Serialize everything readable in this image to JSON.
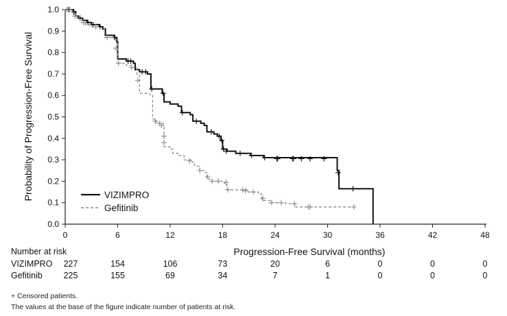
{
  "chart_data": {
    "type": "line",
    "subtype": "kaplan-meier",
    "title": "",
    "xlabel": "Progression-Free Survival (months)",
    "ylabel": "Probability of Progression-Free Survival",
    "xlim": [
      0,
      48
    ],
    "ylim": [
      0,
      1.0
    ],
    "xticks": [
      0,
      6,
      12,
      18,
      24,
      30,
      36,
      42,
      48
    ],
    "yticks": [
      "0.0",
      "0.1",
      "0.2",
      "0.3",
      "0.4",
      "0.5",
      "0.6",
      "0.7",
      "0.8",
      "0.9",
      "1.0"
    ],
    "grid": false,
    "legend_position": "bottom-left",
    "series": [
      {
        "name": "VIZIMPRO",
        "color": "#111111",
        "style": "solid",
        "steps": [
          [
            0,
            1.0
          ],
          [
            0.9,
            0.99
          ],
          [
            1.2,
            0.97
          ],
          [
            1.5,
            0.96
          ],
          [
            2.0,
            0.95
          ],
          [
            2.5,
            0.94
          ],
          [
            3.0,
            0.93
          ],
          [
            3.9,
            0.92
          ],
          [
            4.3,
            0.91
          ],
          [
            4.6,
            0.88
          ],
          [
            5.6,
            0.87
          ],
          [
            5.9,
            0.85
          ],
          [
            6.0,
            0.77
          ],
          [
            7.0,
            0.76
          ],
          [
            7.8,
            0.75
          ],
          [
            8.0,
            0.72
          ],
          [
            8.5,
            0.71
          ],
          [
            9.4,
            0.7
          ],
          [
            9.8,
            0.63
          ],
          [
            11.1,
            0.61
          ],
          [
            11.3,
            0.57
          ],
          [
            12.0,
            0.56
          ],
          [
            12.9,
            0.55
          ],
          [
            13.3,
            0.52
          ],
          [
            14.3,
            0.51
          ],
          [
            14.6,
            0.48
          ],
          [
            15.5,
            0.47
          ],
          [
            15.9,
            0.46
          ],
          [
            16.2,
            0.43
          ],
          [
            17.0,
            0.42
          ],
          [
            17.4,
            0.41
          ],
          [
            17.8,
            0.39
          ],
          [
            18.0,
            0.35
          ],
          [
            18.5,
            0.34
          ],
          [
            19.5,
            0.33
          ],
          [
            21.2,
            0.32
          ],
          [
            22.7,
            0.31
          ],
          [
            31.1,
            0.25
          ],
          [
            31.3,
            0.165
          ],
          [
            35.2,
            0.0
          ]
        ],
        "censored": [
          [
            0.4,
            1.0
          ],
          [
            1.0,
            0.99
          ],
          [
            1.7,
            0.96
          ],
          [
            2.6,
            0.94
          ],
          [
            3.2,
            0.93
          ],
          [
            4.0,
            0.92
          ],
          [
            5.7,
            0.87
          ],
          [
            7.2,
            0.76
          ],
          [
            7.5,
            0.76
          ],
          [
            8.8,
            0.71
          ],
          [
            9.2,
            0.71
          ],
          [
            9.9,
            0.63
          ],
          [
            11.2,
            0.61
          ],
          [
            13.4,
            0.52
          ],
          [
            15.0,
            0.48
          ],
          [
            16.7,
            0.43
          ],
          [
            17.6,
            0.41
          ],
          [
            17.9,
            0.39
          ],
          [
            18.1,
            0.35
          ],
          [
            18.4,
            0.34
          ],
          [
            20.0,
            0.33
          ],
          [
            21.3,
            0.32
          ],
          [
            22.8,
            0.31
          ],
          [
            24.2,
            0.305
          ],
          [
            24.3,
            0.305
          ],
          [
            26.0,
            0.305
          ],
          [
            26.1,
            0.305
          ],
          [
            27.0,
            0.305
          ],
          [
            28.0,
            0.305
          ],
          [
            29.6,
            0.305
          ],
          [
            31.2,
            0.24
          ],
          [
            32.9,
            0.165
          ]
        ],
        "at_risk": [
          227,
          154,
          106,
          73,
          20,
          6,
          0,
          0,
          0
        ]
      },
      {
        "name": "Gefitinib",
        "color": "#8a8a8a",
        "style": "dashed",
        "steps": [
          [
            0,
            1.0
          ],
          [
            0.9,
            0.98
          ],
          [
            1.2,
            0.96
          ],
          [
            1.7,
            0.94
          ],
          [
            2.3,
            0.93
          ],
          [
            2.8,
            0.92
          ],
          [
            4.0,
            0.91
          ],
          [
            4.5,
            0.87
          ],
          [
            5.6,
            0.86
          ],
          [
            6.0,
            0.75
          ],
          [
            7.0,
            0.74
          ],
          [
            7.6,
            0.73
          ],
          [
            8.2,
            0.7
          ],
          [
            8.5,
            0.61
          ],
          [
            9.0,
            0.61
          ],
          [
            9.7,
            0.6
          ],
          [
            10.0,
            0.49
          ],
          [
            10.4,
            0.47
          ],
          [
            11.2,
            0.46
          ],
          [
            11.3,
            0.36
          ],
          [
            12.0,
            0.35
          ],
          [
            12.3,
            0.33
          ],
          [
            13.0,
            0.32
          ],
          [
            13.6,
            0.3
          ],
          [
            14.5,
            0.29
          ],
          [
            14.8,
            0.27
          ],
          [
            15.4,
            0.25
          ],
          [
            15.9,
            0.24
          ],
          [
            16.2,
            0.21
          ],
          [
            16.8,
            0.2
          ],
          [
            17.3,
            0.2
          ],
          [
            18.2,
            0.19
          ],
          [
            18.5,
            0.16
          ],
          [
            20.0,
            0.16
          ],
          [
            20.8,
            0.15
          ],
          [
            22.1,
            0.14
          ],
          [
            22.5,
            0.11
          ],
          [
            23.6,
            0.1
          ],
          [
            25.2,
            0.095
          ],
          [
            26.3,
            0.08
          ],
          [
            33.0,
            0.08
          ]
        ],
        "censored": [
          [
            0.2,
            1.0
          ],
          [
            0.5,
            1.0
          ],
          [
            1.1,
            0.97
          ],
          [
            2.1,
            0.94
          ],
          [
            3.5,
            0.92
          ],
          [
            4.8,
            0.87
          ],
          [
            5.8,
            0.82
          ],
          [
            6.1,
            0.75
          ],
          [
            7.6,
            0.73
          ],
          [
            8.3,
            0.67
          ],
          [
            10.3,
            0.48
          ],
          [
            10.8,
            0.47
          ],
          [
            11.0,
            0.46
          ],
          [
            11.3,
            0.41
          ],
          [
            11.3,
            0.38
          ],
          [
            14.2,
            0.295
          ],
          [
            15.4,
            0.25
          ],
          [
            16.3,
            0.22
          ],
          [
            16.8,
            0.2
          ],
          [
            17.5,
            0.2
          ],
          [
            18.4,
            0.195
          ],
          [
            18.6,
            0.16
          ],
          [
            20.3,
            0.16
          ],
          [
            20.6,
            0.155
          ],
          [
            21.5,
            0.15
          ],
          [
            22.6,
            0.12
          ],
          [
            23.6,
            0.1
          ],
          [
            24.7,
            0.1
          ],
          [
            26.2,
            0.095
          ],
          [
            27.8,
            0.08
          ],
          [
            28.0,
            0.08
          ],
          [
            33.0,
            0.08
          ]
        ],
        "at_risk": [
          225,
          155,
          69,
          34,
          7,
          1,
          0,
          0,
          0
        ]
      }
    ],
    "risk_table": {
      "title": "Number at risk",
      "times": [
        0,
        6,
        12,
        18,
        24,
        30,
        36,
        42,
        48
      ]
    }
  },
  "footnotes": {
    "censored": "+ Censored patients.",
    "at_risk": "The values at the base of the figure indicate number of patients at risk."
  }
}
